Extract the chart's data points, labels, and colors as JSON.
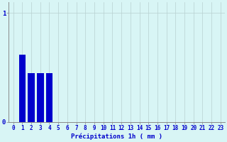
{
  "categories": [
    0,
    1,
    2,
    3,
    4,
    5,
    6,
    7,
    8,
    9,
    10,
    11,
    12,
    13,
    14,
    15,
    16,
    17,
    18,
    19,
    20,
    21,
    22,
    23
  ],
  "values": [
    0,
    0.62,
    0.45,
    0.45,
    0.45,
    0,
    0,
    0,
    0,
    0,
    0,
    0,
    0,
    0,
    0,
    0,
    0,
    0,
    0,
    0,
    0,
    0,
    0,
    0
  ],
  "bar_color": "#0000cc",
  "background_color": "#d8f5f5",
  "grid_color": "#b8d0d0",
  "axis_color": "#888888",
  "text_color": "#0000cc",
  "xlabel": "Précipitations 1h ( mm )",
  "ylim": [
    0,
    1.1
  ],
  "yticks": [
    0,
    1
  ],
  "xlim": [
    -0.5,
    23.5
  ],
  "xlabel_fontsize": 6.5,
  "tick_fontsize": 5.5,
  "bar_width": 0.75
}
